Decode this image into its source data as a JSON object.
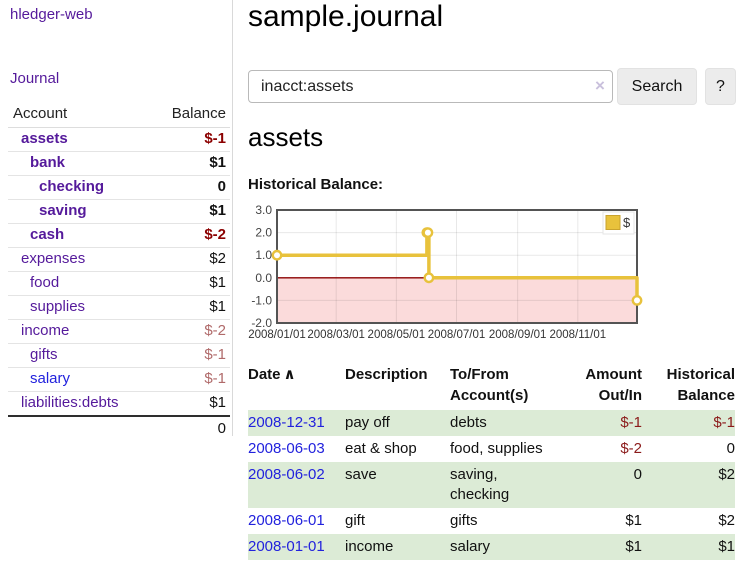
{
  "colors": {
    "link_purple": "#551a9b",
    "link_blue": "#2222dd",
    "negative_strong": "#8b0000",
    "negative_muted": "#b06a6a",
    "table_negative": "#8b1a1a",
    "row_stripe_green": "#dcebd6",
    "chart_line_gold": "#e8c23c",
    "chart_negative_fill": "#fbdbdb",
    "chart_zero_line": "#8b0000",
    "button_bg": "#ececec"
  },
  "sidebar": {
    "brand": "hledger-web",
    "nav": {
      "journal": "Journal"
    },
    "table": {
      "account_header": "Account",
      "balance_header": "Balance"
    },
    "accounts": [
      {
        "name": "assets",
        "level": 1,
        "bold": true,
        "balance": "$-1",
        "balance_style": "neg-strong"
      },
      {
        "name": "bank",
        "level": 2,
        "bold": true,
        "balance": "$1",
        "balance_style": ""
      },
      {
        "name": "checking",
        "level": 3,
        "bold": true,
        "balance": "0",
        "balance_style": ""
      },
      {
        "name": "saving",
        "level": 3,
        "bold": true,
        "balance": "$1",
        "balance_style": ""
      },
      {
        "name": "cash",
        "level": 2,
        "bold": true,
        "balance": "$-2",
        "balance_style": "neg-strong"
      },
      {
        "name": "expenses",
        "level": 1,
        "bold": false,
        "balance": "$2",
        "balance_style": ""
      },
      {
        "name": "food",
        "level": 2,
        "bold": false,
        "balance": "$1",
        "balance_style": ""
      },
      {
        "name": "supplies",
        "level": 2,
        "bold": false,
        "balance": "$1",
        "balance_style": ""
      },
      {
        "name": "income",
        "level": 1,
        "bold": false,
        "balance": "$-2",
        "balance_style": "neg-muted"
      },
      {
        "name": "gifts",
        "level": 2,
        "bold": false,
        "balance": "$-1",
        "balance_style": "neg-muted"
      },
      {
        "name": "salary",
        "level": 2,
        "bold": false,
        "balance": "$-1",
        "balance_style": "neg-muted",
        "unvisited": true
      },
      {
        "name": "liabilities:debts",
        "level": 1,
        "bold": false,
        "balance": "$1",
        "balance_style": ""
      }
    ],
    "total": "0"
  },
  "header": {
    "title": "sample.journal"
  },
  "search": {
    "value": "inacct:assets",
    "clear_icon": "×",
    "button": "Search",
    "help_button": "?"
  },
  "account_page": {
    "heading": "assets",
    "chart_label": "Historical Balance:"
  },
  "chart_data": {
    "type": "line",
    "subtype": "step",
    "title": "Historical Balance",
    "series": [
      {
        "name": "$",
        "points": [
          [
            "2008-01-01",
            1
          ],
          [
            "2008-06-01",
            2
          ],
          [
            "2008-06-02",
            2
          ],
          [
            "2008-06-03",
            0
          ],
          [
            "2008-12-31",
            -1
          ]
        ]
      }
    ],
    "x_range": [
      "2008-01-01",
      "2008-12-31"
    ],
    "ylim": [
      -2,
      3
    ],
    "yticks": [
      "3.0",
      "2.0",
      "1.0",
      "0.0",
      "-1.0",
      "-2.0"
    ],
    "xtick_labels": [
      "2008/01/01",
      "2008/03/01",
      "2008/05/01",
      "2008/07/01",
      "2008/09/01",
      "2008/11/01"
    ],
    "legend": {
      "label": "$",
      "position": "top-right"
    },
    "grid": true,
    "negative_region_shaded": true
  },
  "transactions": {
    "headers": {
      "date": "Date",
      "sort_indicator": "∧",
      "description": "Description",
      "tofrom": "To/From Account(s)",
      "amount": "Amount Out/In",
      "balance": "Historical Balance"
    },
    "rows": [
      {
        "date": "2008-12-31",
        "description": "pay off",
        "tofrom": "debts",
        "amount": "$-1",
        "balance": "$-1"
      },
      {
        "date": "2008-06-03",
        "description": "eat & shop",
        "tofrom": "food, supplies",
        "amount": "$-2",
        "balance": "0"
      },
      {
        "date": "2008-06-02",
        "description": "save",
        "tofrom": "saving, checking",
        "amount": "0",
        "balance": "$2"
      },
      {
        "date": "2008-06-01",
        "description": "gift",
        "tofrom": "gifts",
        "amount": "$1",
        "balance": "$2"
      },
      {
        "date": "2008-01-01",
        "description": "income",
        "tofrom": "salary",
        "amount": "$1",
        "balance": "$1"
      }
    ]
  }
}
